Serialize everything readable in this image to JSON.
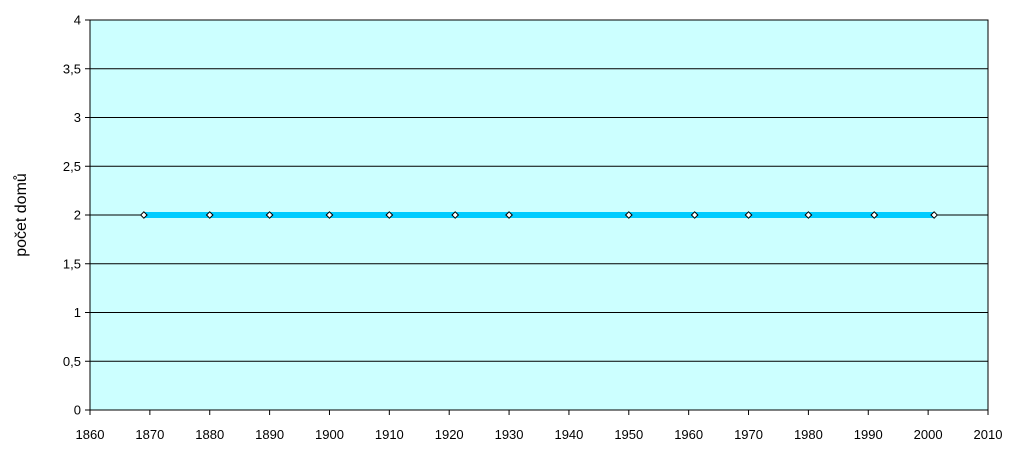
{
  "chart_data": {
    "type": "line",
    "title": "",
    "xlabel": "",
    "ylabel": "počet domů",
    "xlim": [
      1860,
      2010
    ],
    "ylim": [
      0,
      4
    ],
    "x_ticks": [
      "1860",
      "1870",
      "1880",
      "1890",
      "1900",
      "1910",
      "1920",
      "1930",
      "1940",
      "1950",
      "1960",
      "1970",
      "1980",
      "1990",
      "2000",
      "2010"
    ],
    "y_ticks": [
      "0",
      "0,5",
      "1",
      "1,5",
      "2",
      "2,5",
      "3",
      "3,5",
      "4"
    ],
    "grid": true,
    "legend": "none",
    "series": [
      {
        "x": [
          1869,
          1880,
          1890,
          1900,
          1910,
          1921,
          1930,
          1950,
          1961,
          1970,
          1980,
          1991,
          2001
        ],
        "y": [
          2,
          2,
          2,
          2,
          2,
          2,
          2,
          2,
          2,
          2,
          2,
          2,
          2
        ],
        "color": "#00ccff",
        "marker": "diamond"
      }
    ],
    "colors": {
      "plot_background": "#ccffff",
      "gridline": "#000000",
      "axis": "#000000",
      "marker_fill": "#ffffff",
      "marker_stroke": "#000000"
    }
  }
}
